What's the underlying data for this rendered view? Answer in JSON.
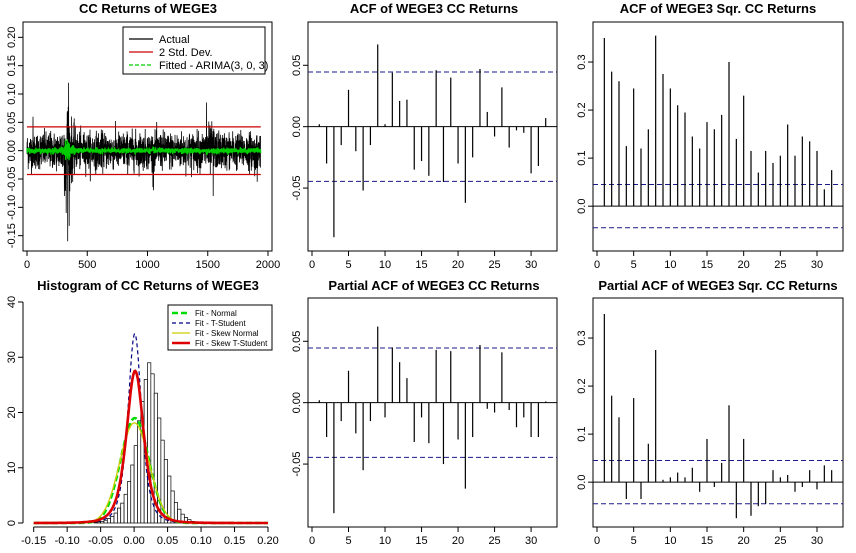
{
  "chart_data": [
    {
      "id": "returns",
      "type": "line",
      "title": "CC Returns of WEGE3",
      "xlim": [
        0,
        2000
      ],
      "ylim": [
        -0.17,
        0.22
      ],
      "xticks": [
        0,
        500,
        1000,
        1500,
        2000
      ],
      "xtick_labels": [
        "0",
        "500",
        "1000",
        "1500",
        "2000"
      ],
      "yticks": [
        -0.15,
        -0.05,
        0.05,
        0.15
      ],
      "ytick_labels": [
        "-0.15",
        "-0.05",
        "0.05",
        "0.15"
      ],
      "yticks_minor": [
        -0.1,
        0.0,
        0.1,
        0.2
      ],
      "ytick_labels_minor": [
        "-0.10",
        "0.00",
        "0.10",
        "0.20"
      ],
      "n_obs": 1940,
      "band_upper": 0.042,
      "band_lower": -0.042,
      "legend": [
        "Actual",
        "2 Std. Dev.",
        "Fitted - ARIMA(3, 0, 3)"
      ],
      "series_colors": {
        "actual": "#000000",
        "band": "#cc0000",
        "fitted": "#00cc00"
      },
      "notable_points": [
        {
          "x": 338,
          "y": 0.19
        },
        {
          "x": 338,
          "y": -0.16
        },
        {
          "x": 325,
          "y": -0.11
        },
        {
          "x": 345,
          "y": 0.12
        },
        {
          "x": 310,
          "y": -0.08
        },
        {
          "x": 1490,
          "y": 0.085
        },
        {
          "x": 1545,
          "y": -0.08
        },
        {
          "x": 1050,
          "y": -0.07
        },
        {
          "x": 50,
          "y": 0.06
        },
        {
          "x": 1890,
          "y": -0.045
        },
        {
          "x": 1910,
          "y": -0.055
        }
      ]
    },
    {
      "id": "acf",
      "type": "bar",
      "title": "ACF of WEGE3 CC Returns",
      "lags": [
        1,
        2,
        3,
        4,
        5,
        6,
        7,
        8,
        9,
        10,
        11,
        12,
        13,
        14,
        15,
        16,
        17,
        18,
        19,
        20,
        21,
        22,
        23,
        24,
        25,
        26,
        27,
        28,
        29,
        30,
        31,
        32
      ],
      "values": [
        0.002,
        -0.03,
        -0.09,
        -0.015,
        0.03,
        -0.02,
        -0.052,
        -0.015,
        0.067,
        0.002,
        0.044,
        0.021,
        0.022,
        -0.035,
        -0.028,
        -0.04,
        0.046,
        -0.045,
        0.04,
        -0.03,
        -0.062,
        -0.025,
        0.047,
        0.012,
        -0.008,
        0.032,
        -0.017,
        -0.003,
        -0.005,
        -0.038,
        -0.032,
        0.007
      ],
      "ci": 0.0445,
      "xlim": [
        0,
        33
      ],
      "ylim": [
        -0.098,
        0.082
      ],
      "xticks": [
        0,
        5,
        10,
        15,
        20,
        25,
        30
      ],
      "xtick_labels": [
        "0",
        "5",
        "10",
        "15",
        "20",
        "25",
        "30"
      ],
      "yticks": [
        -0.05,
        0.0,
        0.05
      ],
      "ytick_labels": [
        "-0.05",
        "0.00",
        "0.05"
      ]
    },
    {
      "id": "acf_sq",
      "type": "bar",
      "title": "ACF of WEGE3 Sqr. CC Returns",
      "lags": [
        1,
        2,
        3,
        4,
        5,
        6,
        7,
        8,
        9,
        10,
        11,
        12,
        13,
        14,
        15,
        16,
        17,
        18,
        19,
        20,
        21,
        22,
        23,
        24,
        25,
        26,
        27,
        28,
        29,
        30,
        31,
        32
      ],
      "values": [
        0.35,
        0.28,
        0.26,
        0.125,
        0.245,
        0.12,
        0.16,
        0.355,
        0.275,
        0.245,
        0.21,
        0.195,
        0.145,
        0.12,
        0.175,
        0.16,
        0.19,
        0.3,
        0.14,
        0.23,
        0.115,
        0.07,
        0.115,
        0.09,
        0.105,
        0.17,
        0.105,
        0.145,
        0.135,
        0.115,
        0.035,
        0.075
      ],
      "ci": 0.045,
      "xlim": [
        0,
        33
      ],
      "ylim": [
        -0.085,
        0.375
      ],
      "xticks": [
        0,
        5,
        10,
        15,
        20,
        25,
        30
      ],
      "xtick_labels": [
        "0",
        "5",
        "10",
        "15",
        "20",
        "25",
        "30"
      ],
      "yticks": [
        0.0,
        0.1,
        0.2,
        0.3
      ],
      "ytick_labels": [
        "0.0",
        "0.1",
        "0.2",
        "0.3"
      ]
    },
    {
      "id": "hist",
      "type": "bar",
      "title": "Histogram of CC Returns of WEGE3",
      "xlim": [
        -0.16,
        0.2
      ],
      "ylim": [
        0,
        40
      ],
      "xticks": [
        -0.15,
        -0.05,
        0.0,
        0.05,
        0.1,
        0.15,
        0.2
      ],
      "xtick_labels": [
        "-0.15",
        "-0.05",
        "0.00",
        "0.05",
        "0.10",
        "0.15",
        "0.20"
      ],
      "xticks_minor": [
        -0.1
      ],
      "xtick_labels_minor": [
        "-0.10"
      ],
      "yticks": [
        0,
        10,
        20,
        30,
        40
      ],
      "ytick_labels": [
        "0",
        "10",
        "20",
        "30",
        "40"
      ],
      "bin_width": 0.005,
      "bins_start": -0.06,
      "density": [
        0.1,
        0.2,
        0.3,
        0.5,
        0.8,
        1.2,
        1.8,
        2.7,
        3.6,
        5.2,
        7.5,
        10.5,
        14,
        18.5,
        22,
        26,
        29,
        27,
        23.5,
        19,
        15,
        11.5,
        8.5,
        5.8,
        3.7,
        2.5,
        1.6,
        1,
        0.6,
        0.3,
        0.2,
        0.1
      ],
      "legend": [
        "Fit - Normal",
        "Fit - T-Student",
        "Fit - Skew Normal",
        "Fit - Skew T-Student"
      ],
      "series": [
        {
          "name": "Fit - Normal",
          "type": "normal",
          "mu": 0.001,
          "sigma": 0.021,
          "color": "#00dd00"
        },
        {
          "name": "Fit - T-Student",
          "type": "t",
          "mu": 0.001,
          "sigma": 0.0108,
          "nu": 3.3,
          "color": "#000080"
        },
        {
          "name": "Fit - Skew Normal",
          "type": "normal",
          "mu": 0.0005,
          "sigma": 0.022,
          "color": "#cccc00"
        },
        {
          "name": "Fit - Skew T-Student",
          "type": "t",
          "mu": 0.0015,
          "sigma": 0.0135,
          "nu": 3.5,
          "color": "#dd0000"
        }
      ]
    },
    {
      "id": "pacf",
      "type": "bar",
      "title": "Partial ACF of WEGE3 CC Returns",
      "lags": [
        1,
        2,
        3,
        4,
        5,
        6,
        7,
        8,
        9,
        10,
        11,
        12,
        13,
        14,
        15,
        16,
        17,
        18,
        19,
        20,
        21,
        22,
        23,
        24,
        25,
        26,
        27,
        28,
        29,
        30,
        31,
        32
      ],
      "values": [
        0.002,
        -0.028,
        -0.09,
        -0.015,
        0.026,
        -0.025,
        -0.055,
        -0.015,
        0.062,
        -0.012,
        0.045,
        0.033,
        0.02,
        -0.032,
        -0.012,
        -0.033,
        0.043,
        -0.05,
        0.042,
        -0.03,
        -0.07,
        -0.028,
        0.047,
        -0.005,
        -0.008,
        0.041,
        -0.006,
        -0.02,
        -0.012,
        -0.028,
        -0.028,
        0.001
      ],
      "ci": 0.0445,
      "xlim": [
        0,
        33
      ],
      "ylim": [
        -0.098,
        0.082
      ],
      "xticks": [
        0,
        5,
        10,
        15,
        20,
        25,
        30
      ],
      "xtick_labels": [
        "0",
        "5",
        "10",
        "15",
        "20",
        "25",
        "30"
      ],
      "yticks": [
        -0.05,
        0.0,
        0.05
      ],
      "ytick_labels": [
        "-0.05",
        "0.00",
        "0.05"
      ]
    },
    {
      "id": "pacf_sq",
      "type": "bar",
      "title": "Partial ACF of WEGE3 Sqr. CC Returns",
      "lags": [
        1,
        2,
        3,
        4,
        5,
        6,
        7,
        8,
        9,
        10,
        11,
        12,
        13,
        14,
        15,
        16,
        17,
        18,
        19,
        20,
        21,
        22,
        23,
        24,
        25,
        26,
        27,
        28,
        29,
        30,
        31,
        32
      ],
      "values": [
        0.35,
        0.18,
        0.135,
        -0.035,
        0.175,
        -0.035,
        0.08,
        0.275,
        0.005,
        0.01,
        0.02,
        0.01,
        0.03,
        -0.02,
        0.09,
        -0.01,
        0.04,
        0.16,
        -0.075,
        0.09,
        -0.07,
        -0.05,
        -0.045,
        0.025,
        0.01,
        0.015,
        -0.02,
        -0.01,
        0.025,
        -0.015,
        0.035,
        0.025
      ],
      "ci": 0.045,
      "xlim": [
        0,
        33
      ],
      "ylim": [
        -0.085,
        0.375
      ],
      "xticks": [
        0,
        5,
        10,
        15,
        20,
        25,
        30
      ],
      "xtick_labels": [
        "0",
        "5",
        "10",
        "15",
        "20",
        "25",
        "30"
      ],
      "yticks": [
        0.0,
        0.1,
        0.2,
        0.3
      ],
      "ytick_labels": [
        "0.0",
        "0.1",
        "0.2",
        "0.3"
      ]
    }
  ]
}
